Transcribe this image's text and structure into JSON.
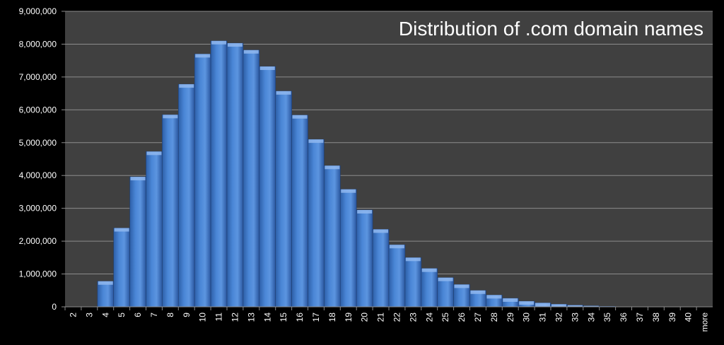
{
  "chart_data": {
    "type": "bar",
    "title": "Distribution of  .com domain names",
    "xlabel": "",
    "ylabel": "",
    "ylim": [
      0,
      9000000
    ],
    "yticks": [
      "0",
      "1,000,000",
      "2,000,000",
      "3,000,000",
      "4,000,000",
      "5,000,000",
      "6,000,000",
      "7,000,000",
      "8,000,000",
      "9,000,000"
    ],
    "ytick_values": [
      0,
      1000000,
      2000000,
      3000000,
      4000000,
      5000000,
      6000000,
      7000000,
      8000000,
      9000000
    ],
    "grid": true,
    "categories": [
      "2",
      "3",
      "4",
      "5",
      "6",
      "7",
      "8",
      "9",
      "10",
      "11",
      "12",
      "13",
      "14",
      "15",
      "16",
      "17",
      "18",
      "19",
      "20",
      "21",
      "22",
      "23",
      "24",
      "25",
      "26",
      "27",
      "28",
      "29",
      "30",
      "31",
      "32",
      "33",
      "34",
      "35",
      "36",
      "37",
      "38",
      "39",
      "40",
      "more"
    ],
    "values": [
      0,
      0,
      780000,
      2400000,
      3960000,
      4730000,
      5850000,
      6780000,
      7700000,
      8100000,
      8030000,
      7820000,
      7320000,
      6570000,
      5840000,
      5100000,
      4300000,
      3580000,
      2950000,
      2360000,
      1890000,
      1500000,
      1170000,
      890000,
      680000,
      500000,
      360000,
      260000,
      170000,
      120000,
      80000,
      50000,
      30000,
      15000,
      8000,
      5000,
      3000,
      2000,
      1000,
      10000
    ],
    "colors": {
      "background": "#404040",
      "bar": "#4a86d6",
      "bar_top": "#8fb7ee",
      "grid": "#8c8c8c",
      "text": "#ffffff",
      "outer": "#000000"
    }
  }
}
